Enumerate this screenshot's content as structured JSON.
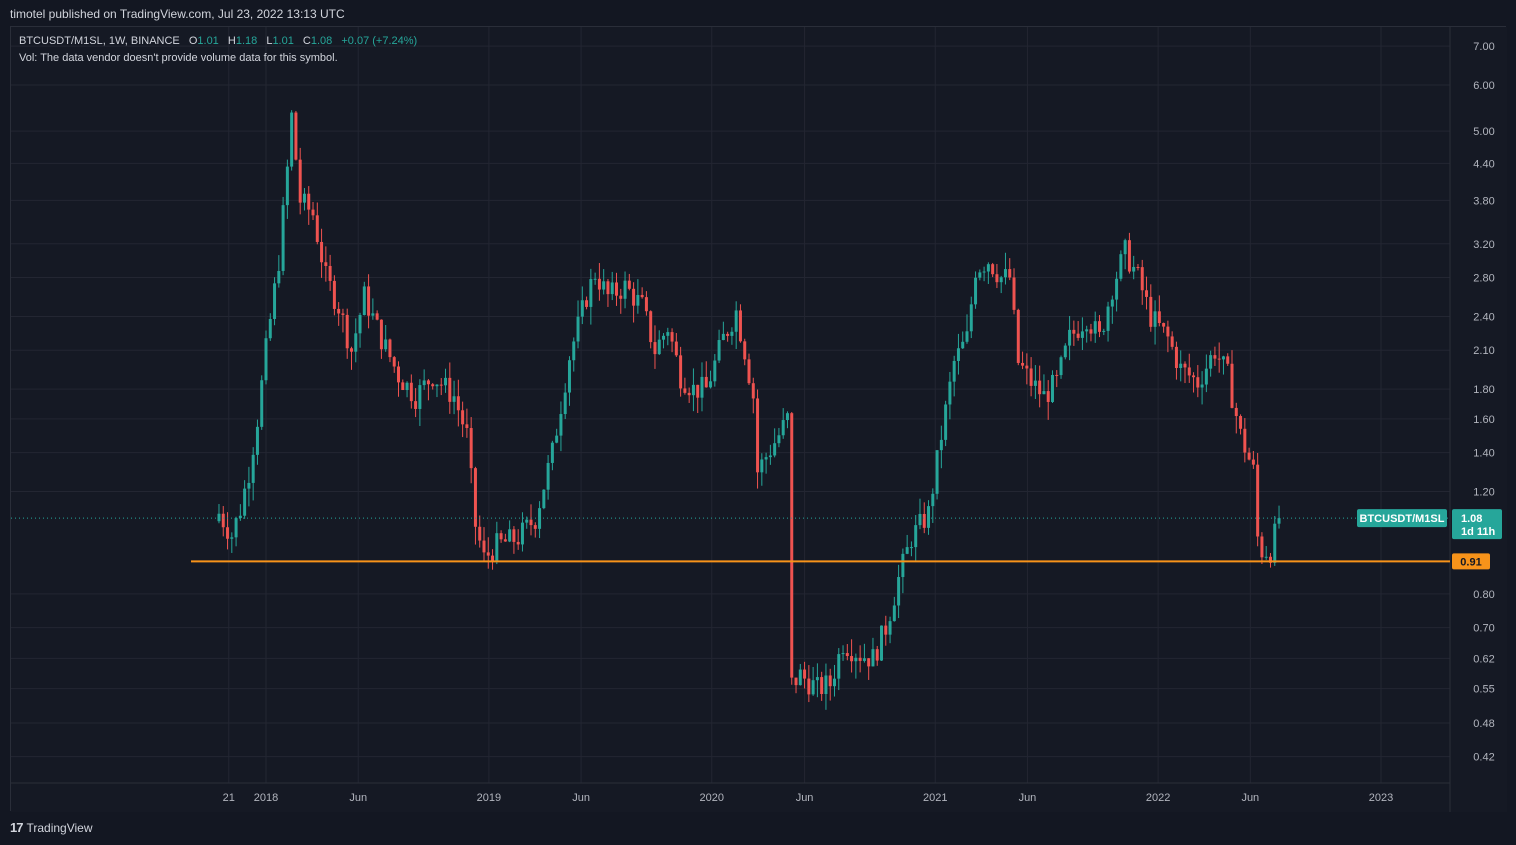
{
  "publisher": "timotel published on TradingView.com, Jul 23, 2022 13:13 UTC",
  "legend": {
    "symbol": "BTCUSDT/M1SL, 1W, BINANCE",
    "o_label": "O",
    "o_value": "1.01",
    "h_label": "H",
    "h_value": "1.18",
    "l_label": "L",
    "l_value": "1.01",
    "c_label": "C",
    "c_value": "1.08",
    "change": "+0.07 (+7.24%)"
  },
  "volume_note": "Vol: The data vendor doesn't provide volume data for this symbol.",
  "footer_logo": "TradingView",
  "price_tag": {
    "symbol": "BTCUSDT/M1SL",
    "price": "1.08",
    "countdown": "1d 11h"
  },
  "level_tag": "0.91",
  "colors": {
    "up": "#26a69a",
    "down": "#ef5350",
    "level": "#f7931a",
    "grid": "#232632",
    "bg": "#151924"
  },
  "chart_data": {
    "type": "candlestick",
    "scale": "log",
    "ylim": [
      0.4,
      7.2
    ],
    "y_ticks": [
      7.0,
      6.0,
      5.0,
      4.4,
      3.8,
      3.2,
      2.8,
      2.4,
      2.1,
      1.8,
      1.6,
      1.4,
      1.2,
      0.8,
      0.7,
      0.62,
      0.55,
      0.48,
      0.42
    ],
    "x_ticks": [
      {
        "label": "21",
        "date": "2017-11-01"
      },
      {
        "label": "2018",
        "date": "2018-01-01"
      },
      {
        "label": "Jun",
        "date": "2018-06-01"
      },
      {
        "label": "2019",
        "date": "2019-01-01"
      },
      {
        "label": "Jun",
        "date": "2019-06-01"
      },
      {
        "label": "2020",
        "date": "2020-01-01"
      },
      {
        "label": "Jun",
        "date": "2020-06-01"
      },
      {
        "label": "2021",
        "date": "2021-01-01"
      },
      {
        "label": "Jun",
        "date": "2021-06-01"
      },
      {
        "label": "2022",
        "date": "2022-01-01"
      },
      {
        "label": "Jun",
        "date": "2022-06-01"
      },
      {
        "label": "2023",
        "date": "2023-01-01"
      }
    ],
    "horizontal_level": 0.91,
    "last_price": 1.08,
    "anchors": [
      [
        "2017-10-16",
        1.1
      ],
      [
        "2017-11-06",
        1.01
      ],
      [
        "2017-11-20",
        1.12
      ],
      [
        "2017-12-04",
        1.3
      ],
      [
        "2017-12-18",
        1.6
      ],
      [
        "2018-01-01",
        2.1
      ],
      [
        "2018-01-22",
        3.0
      ],
      [
        "2018-02-05",
        4.3
      ],
      [
        "2018-02-12",
        5.3
      ],
      [
        "2018-02-26",
        3.8
      ],
      [
        "2018-03-19",
        3.6
      ],
      [
        "2018-04-09",
        2.8
      ],
      [
        "2018-04-30",
        2.5
      ],
      [
        "2018-05-21",
        2.1
      ],
      [
        "2018-06-11",
        2.6
      ],
      [
        "2018-07-09",
        2.2
      ],
      [
        "2018-08-06",
        1.9
      ],
      [
        "2018-09-03",
        1.75
      ],
      [
        "2018-10-01",
        1.9
      ],
      [
        "2018-11-05",
        1.75
      ],
      [
        "2018-11-26",
        1.5
      ],
      [
        "2018-12-10",
        1.05
      ],
      [
        "2018-12-24",
        0.92
      ],
      [
        "2019-01-14",
        0.97
      ],
      [
        "2019-02-18",
        1.0
      ],
      [
        "2019-03-18",
        1.08
      ],
      [
        "2019-04-15",
        1.4
      ],
      [
        "2019-05-13",
        2.05
      ],
      [
        "2019-06-10",
        2.6
      ],
      [
        "2019-06-24",
        2.85
      ],
      [
        "2019-07-15",
        2.6
      ],
      [
        "2019-08-12",
        2.7
      ],
      [
        "2019-09-09",
        2.5
      ],
      [
        "2019-09-30",
        2.1
      ],
      [
        "2019-10-21",
        2.3
      ],
      [
        "2019-11-11",
        1.9
      ],
      [
        "2019-12-02",
        1.8
      ],
      [
        "2019-12-23",
        1.8
      ],
      [
        "2020-01-20",
        2.2
      ],
      [
        "2020-02-10",
        2.45
      ],
      [
        "2020-02-24",
        2.1
      ],
      [
        "2020-03-09",
        1.75
      ],
      [
        "2020-03-16",
        1.3
      ],
      [
        "2020-03-30",
        1.38
      ],
      [
        "2020-04-20",
        1.5
      ],
      [
        "2020-05-04",
        1.6
      ],
      [
        "2020-05-11",
        0.56
      ],
      [
        "2020-05-25",
        0.58
      ],
      [
        "2020-06-22",
        0.55
      ],
      [
        "2020-07-13",
        0.56
      ],
      [
        "2020-08-03",
        0.66
      ],
      [
        "2020-08-31",
        0.63
      ],
      [
        "2020-09-21",
        0.62
      ],
      [
        "2020-10-12",
        0.7
      ],
      [
        "2020-11-02",
        0.85
      ],
      [
        "2020-11-23",
        1.0
      ],
      [
        "2020-12-21",
        1.1
      ],
      [
        "2021-01-11",
        1.5
      ],
      [
        "2021-02-01",
        2.0
      ],
      [
        "2021-02-22",
        2.2
      ],
      [
        "2021-03-08",
        2.9
      ],
      [
        "2021-03-29",
        3.0
      ],
      [
        "2021-04-19",
        2.8
      ],
      [
        "2021-05-03",
        2.8
      ],
      [
        "2021-05-17",
        2.0
      ],
      [
        "2021-06-07",
        1.85
      ],
      [
        "2021-06-28",
        1.75
      ],
      [
        "2021-07-19",
        1.85
      ],
      [
        "2021-08-09",
        2.2
      ],
      [
        "2021-09-06",
        2.4
      ],
      [
        "2021-09-27",
        2.2
      ],
      [
        "2021-10-18",
        2.7
      ],
      [
        "2021-11-08",
        3.1
      ],
      [
        "2021-11-29",
        2.8
      ],
      [
        "2021-12-20",
        2.4
      ],
      [
        "2022-01-17",
        2.2
      ],
      [
        "2022-02-07",
        1.95
      ],
      [
        "2022-03-07",
        1.85
      ],
      [
        "2022-04-04",
        2.1
      ],
      [
        "2022-04-25",
        1.9
      ],
      [
        "2022-05-16",
        1.5
      ],
      [
        "2022-06-06",
        1.3
      ],
      [
        "2022-06-13",
        1.0
      ],
      [
        "2022-06-20",
        0.95
      ],
      [
        "2022-07-04",
        0.95
      ],
      [
        "2022-07-11",
        1.01
      ],
      [
        "2022-07-18",
        1.08
      ]
    ]
  }
}
